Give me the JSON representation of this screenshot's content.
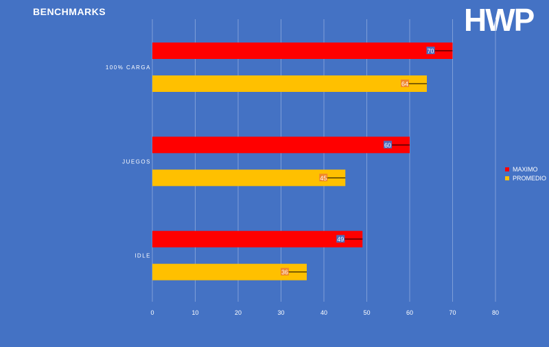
{
  "chart_data": {
    "type": "bar",
    "orientation": "horizontal",
    "title": "BENCHMARKS",
    "categories": [
      "100% CARGA",
      "JUEGOS",
      "IDLE"
    ],
    "series": [
      {
        "name": "MAXIMO",
        "color": "#ff0000",
        "values": [
          70,
          60,
          49
        ]
      },
      {
        "name": "PROMEDIO",
        "color": "#ffc000",
        "values": [
          64,
          45,
          36
        ]
      }
    ],
    "xlim": [
      0,
      80
    ],
    "xticks": [
      "0",
      "10",
      "20",
      "30",
      "40",
      "50",
      "60",
      "70",
      "80"
    ],
    "grid": true,
    "legend": "right"
  },
  "logo_text": "HWP"
}
